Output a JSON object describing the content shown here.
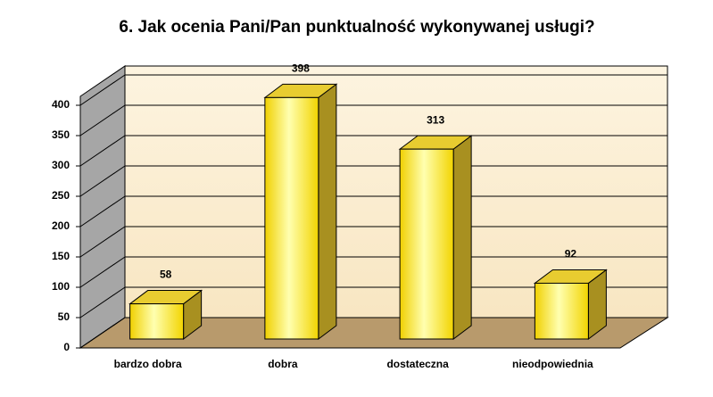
{
  "chart_data": {
    "type": "bar3d",
    "title": "6. Jak ocenia Pani/Pan punktualność wykonywanej usługi?",
    "categories": [
      "bardzo dobra",
      "dobra",
      "dostateczna",
      "nieodpowiednia"
    ],
    "values": [
      58,
      398,
      313,
      92
    ],
    "color": "#f5d800",
    "ylim": [
      0,
      400
    ],
    "yticks": [
      0,
      50,
      100,
      150,
      200,
      250,
      300,
      350,
      400
    ],
    "grid": true
  }
}
